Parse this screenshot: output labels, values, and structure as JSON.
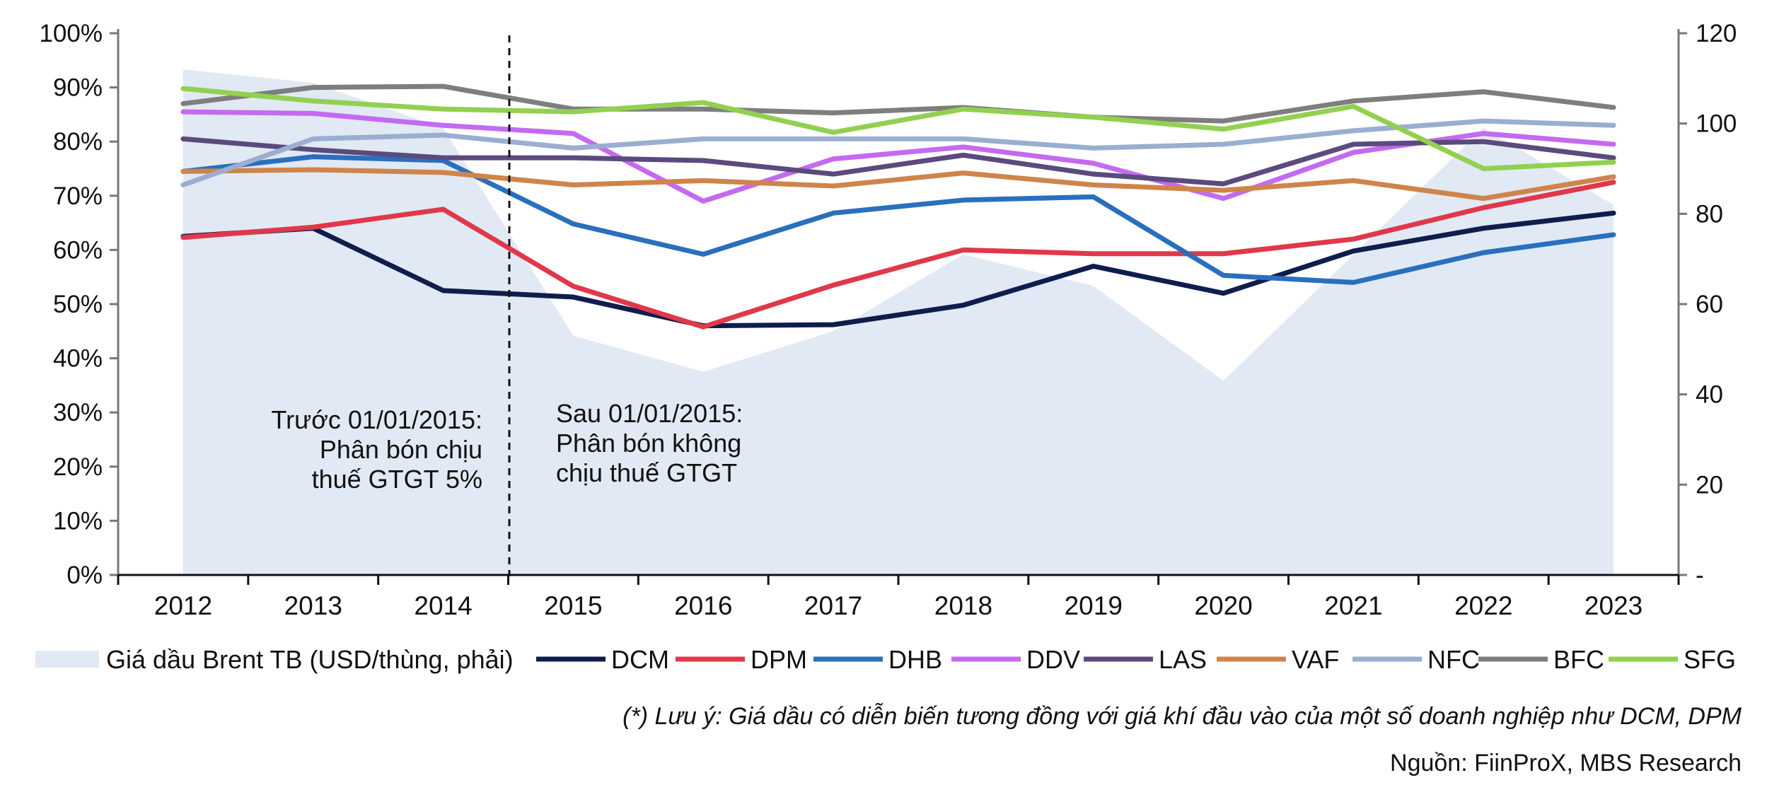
{
  "chart_data": {
    "type": "line",
    "categories": [
      "2012",
      "2013",
      "2014",
      "2015",
      "2016",
      "2017",
      "2018",
      "2019",
      "2020",
      "2021",
      "2022",
      "2023"
    ],
    "ylim_left": [
      0,
      100
    ],
    "yticks_left": [
      "0%",
      "10%",
      "20%",
      "30%",
      "40%",
      "50%",
      "60%",
      "70%",
      "80%",
      "90%",
      "100%"
    ],
    "ylim_right": [
      0,
      120
    ],
    "yticks_right": [
      "-",
      "20",
      "40",
      "60",
      "80",
      "100",
      "120"
    ],
    "area": {
      "name": "Giá dầu Brent TB (USD/thùng, phải)",
      "color": "#e1e9f4",
      "values": [
        112,
        109,
        99,
        53,
        45,
        54,
        71,
        64,
        43,
        71,
        99,
        82
      ]
    },
    "series": [
      {
        "name": "DCM",
        "color": "#0f1d4e",
        "values": [
          62.5,
          64.0,
          52.5,
          51.3,
          46.0,
          46.2,
          49.8,
          57.0,
          52.0,
          59.8,
          64.0,
          66.8
        ]
      },
      {
        "name": "DPM",
        "color": "#e0384a",
        "values": [
          62.3,
          64.2,
          67.5,
          53.3,
          45.8,
          53.5,
          60.0,
          59.3,
          59.3,
          62.0,
          67.8,
          72.5
        ]
      },
      {
        "name": "DHB",
        "color": "#2a6fbe",
        "values": [
          74.5,
          77.2,
          76.5,
          64.8,
          59.2,
          66.8,
          69.2,
          69.8,
          55.3,
          54.0,
          59.5,
          62.8
        ]
      },
      {
        "name": "DDV",
        "color": "#c46af0",
        "values": [
          85.5,
          85.2,
          83.0,
          81.5,
          69.0,
          76.8,
          79.0,
          76.0,
          69.5,
          78.0,
          81.5,
          79.5
        ]
      },
      {
        "name": "LAS",
        "color": "#5b4a7e",
        "values": [
          80.5,
          78.5,
          77.0,
          77.0,
          76.5,
          74.0,
          77.5,
          74.0,
          72.2,
          79.5,
          80.0,
          77.0
        ]
      },
      {
        "name": "VAF",
        "color": "#d0844a",
        "values": [
          74.5,
          74.8,
          74.3,
          72.0,
          72.8,
          71.8,
          74.2,
          72.0,
          71.0,
          72.8,
          69.5,
          73.5
        ]
      },
      {
        "name": "NFC",
        "color": "#9aaed0",
        "values": [
          72.0,
          80.5,
          81.2,
          78.8,
          80.5,
          80.5,
          80.5,
          78.8,
          79.5,
          82.0,
          83.8,
          83.0
        ]
      },
      {
        "name": "BFC",
        "color": "#7e7e7e",
        "values": [
          87.0,
          90.0,
          90.2,
          86.0,
          86.0,
          85.3,
          86.3,
          84.5,
          83.8,
          87.5,
          89.2,
          86.3
        ]
      },
      {
        "name": "SFG",
        "color": "#92d050",
        "values": [
          89.8,
          87.5,
          86.0,
          85.5,
          87.2,
          81.7,
          86.0,
          84.5,
          82.3,
          86.5,
          75.0,
          76.2
        ]
      }
    ],
    "annotations": {
      "before": [
        "Trước 01/01/2015:",
        "Phân bón chịu",
        "thuế GTGT 5%"
      ],
      "after": [
        "Sau 01/01/2015:",
        "Phân bón không",
        "chịu thuế GTGT"
      ]
    }
  },
  "note": "(*) Lưu ý: Giá dầu có diễn biến tương đồng với giá khí đầu vào của một số doanh nghiệp như DCM, DPM",
  "source": "Nguồn: FiinProX, MBS Research"
}
